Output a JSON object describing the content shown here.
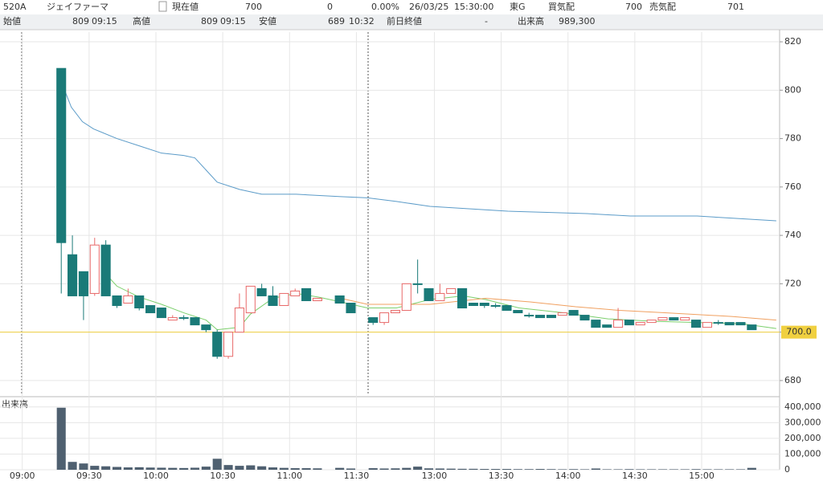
{
  "header": {
    "row1": [
      "520A",
      "ジェイファーマ",
      "現在値",
      "700",
      "0",
      "0.00%",
      "26/03/25",
      "15:30:00",
      "東G",
      "買気配",
      "700",
      "売気配",
      "701"
    ],
    "row2": [
      "始値",
      "809",
      "09:15",
      "高値",
      "809",
      "09:15",
      "安値",
      "689",
      "10:32",
      "前日終値",
      "-",
      "出来高",
      "989,300"
    ]
  },
  "chart_data": {
    "type": "candlestick",
    "x": [
      3.5,
      4.5,
      5.5,
      6.5,
      7.5,
      8.5,
      9.5,
      10.5,
      11.5,
      12.5,
      13.5,
      14.5,
      15.5,
      16.5,
      17.5,
      18.5,
      19.5,
      20.5,
      21.5,
      22.5,
      23.5,
      24.5,
      25.5,
      26.5,
      28.5,
      29.5,
      31.5,
      32.5,
      33.5,
      34.5,
      35.5,
      36.5,
      37.5,
      38.5,
      39.5,
      40.5,
      41.5,
      42.5,
      43.5,
      44.5,
      45.5,
      46.5,
      47.5,
      48.5,
      49.5,
      50.5,
      51.5,
      52.5,
      53.5,
      54.5,
      55.5,
      56.5,
      57.5,
      58.5,
      59.5,
      60.5,
      61.5,
      62.5,
      63.5,
      64.5,
      65.5
    ],
    "open": [
      809,
      732,
      725,
      716,
      736,
      715,
      712,
      715,
      711,
      710,
      705,
      706,
      706,
      703,
      700,
      690,
      700,
      708,
      718,
      715,
      711,
      715,
      718,
      713,
      715,
      712,
      706,
      704,
      708,
      709,
      720,
      718,
      713,
      716,
      718,
      712,
      712,
      711,
      711,
      709,
      707,
      707,
      707,
      707,
      709,
      707,
      705,
      703,
      702,
      705,
      703,
      704,
      705,
      706,
      705,
      705,
      702,
      704,
      704,
      704,
      703
    ],
    "high": [
      809,
      740,
      725,
      739,
      738,
      715,
      718,
      715,
      711,
      710,
      707,
      707,
      706,
      703,
      701,
      700,
      716,
      719,
      720,
      719,
      716,
      718,
      718,
      714,
      715,
      712,
      706,
      708,
      709,
      720,
      730,
      718,
      720,
      718,
      718,
      712,
      712,
      712,
      711,
      709,
      708,
      707,
      707,
      708,
      709,
      707,
      705,
      703,
      710,
      705,
      704,
      705,
      706,
      706,
      706,
      705,
      704,
      705,
      704,
      704,
      703
    ],
    "low": [
      716,
      715,
      705,
      715,
      715,
      710,
      712,
      709,
      708,
      706,
      705,
      705,
      703,
      700,
      689,
      689,
      700,
      708,
      715,
      711,
      711,
      715,
      713,
      713,
      712,
      708,
      703,
      703,
      708,
      709,
      716,
      713,
      713,
      716,
      710,
      711,
      710,
      710,
      709,
      708,
      706,
      706,
      706,
      707,
      707,
      705,
      702,
      702,
      702,
      703,
      703,
      704,
      705,
      705,
      705,
      702,
      702,
      703,
      703,
      703,
      701
    ],
    "close": [
      737,
      715,
      715,
      736,
      715,
      711,
      715,
      710,
      708,
      706,
      706,
      706,
      703,
      701,
      690,
      700,
      710,
      719,
      715,
      711,
      716,
      717,
      713,
      714,
      712,
      708,
      704,
      708,
      709,
      720,
      720,
      713,
      716,
      718,
      710,
      711,
      711,
      711,
      709,
      708,
      707,
      706,
      706,
      708,
      707,
      705,
      702,
      702,
      705,
      703,
      704,
      705,
      706,
      705,
      706,
      702,
      704,
      704,
      703,
      703,
      701
    ],
    "up_color": "#e86a6a",
    "down_color": "#1a7a78",
    "xlim": [
      -2,
      68
    ],
    "ylim": [
      674,
      824
    ],
    "yticks": [
      680,
      700,
      720,
      740,
      760,
      780,
      800,
      820
    ],
    "xticks": [
      {
        "value": 0,
        "label": "09:00"
      },
      {
        "value": 6,
        "label": "09:30"
      },
      {
        "value": 12,
        "label": "10:00"
      },
      {
        "value": 18,
        "label": "10:30"
      },
      {
        "value": 24,
        "label": "11:00"
      },
      {
        "value": 30,
        "label": "11:30"
      },
      {
        "value": 37,
        "label": "13:00"
      },
      {
        "value": 43,
        "label": "13:30"
      },
      {
        "value": 49,
        "label": "14:00"
      },
      {
        "value": 55,
        "label": "14:30"
      },
      {
        "value": 61,
        "label": "15:00"
      }
    ],
    "lines": [
      {
        "color": "#5b9bc8",
        "x": [
          3.8,
          4.4,
          5.4,
          6.4,
          8.5,
          10.5,
          12.5,
          14.5,
          15.5,
          16.5,
          17.5,
          19.5,
          21.5,
          24.6,
          28.6,
          31.0,
          33.6,
          36.6,
          43.6,
          50.7,
          54.6,
          60.6,
          67.7
        ],
        "values": [
          800,
          793,
          787,
          784,
          780,
          777,
          774,
          773,
          772,
          767,
          762,
          759,
          757,
          757,
          756,
          755.5,
          754,
          752,
          750,
          749,
          748,
          748,
          746
        ]
      },
      {
        "color": "#7ccf6c",
        "x": [
          7.5,
          8.5,
          10.5,
          12.5,
          14.5,
          16.5,
          17.5,
          19.5,
          20.5,
          22.5,
          24.6,
          26.6,
          28.6,
          31.0,
          33.6,
          36.6,
          39.6,
          41.6,
          44.6,
          48.6,
          52.6,
          56.7,
          60.6,
          64.6,
          67.7
        ],
        "values": [
          724,
          719,
          714.5,
          711.5,
          708,
          705,
          701,
          702,
          707.5,
          714,
          716,
          714.5,
          712.5,
          710,
          710,
          713.5,
          715,
          713.5,
          710,
          708,
          705.5,
          704.5,
          704,
          703.5,
          701.5
        ]
      },
      {
        "color": "#f0a060",
        "x": [
          28.6,
          31.0,
          36.6,
          41.6,
          45.6,
          49.7,
          53.6,
          57.7,
          63.7,
          67.7
        ],
        "values": [
          714,
          711.5,
          711.5,
          714,
          712.5,
          710.5,
          709,
          708,
          706.5,
          705
        ]
      }
    ],
    "last_price": {
      "value": 700,
      "label": "700.0"
    },
    "last_color": "#f0d040",
    "volume": {
      "label": "出来高",
      "color": "#4f6070",
      "ylim": [
        0,
        450000
      ],
      "yticks": [
        0,
        {
          "value": 100000,
          "label": "100,000"
        },
        {
          "value": 200000,
          "label": "200,000"
        },
        {
          "value": 300000,
          "label": "300,000"
        },
        {
          "value": 400000,
          "label": "400,000"
        }
      ],
      "values": [
        395000,
        50000,
        40000,
        25000,
        22000,
        18000,
        15000,
        16000,
        14000,
        13000,
        12000,
        11000,
        13000,
        20000,
        70000,
        30000,
        25000,
        28000,
        22000,
        15000,
        12000,
        10000,
        10000,
        9000,
        12000,
        8000,
        10000,
        8000,
        9000,
        12000,
        20000,
        9000,
        8000,
        7000,
        6000,
        6000,
        5000,
        5000,
        5000,
        4000,
        4000,
        5000,
        4000,
        3000,
        4000,
        3000,
        8000,
        3000,
        3000,
        4000,
        3000,
        3000,
        3000,
        3000,
        3000,
        4000,
        3000,
        3000,
        3000,
        3000,
        12000
      ]
    }
  }
}
